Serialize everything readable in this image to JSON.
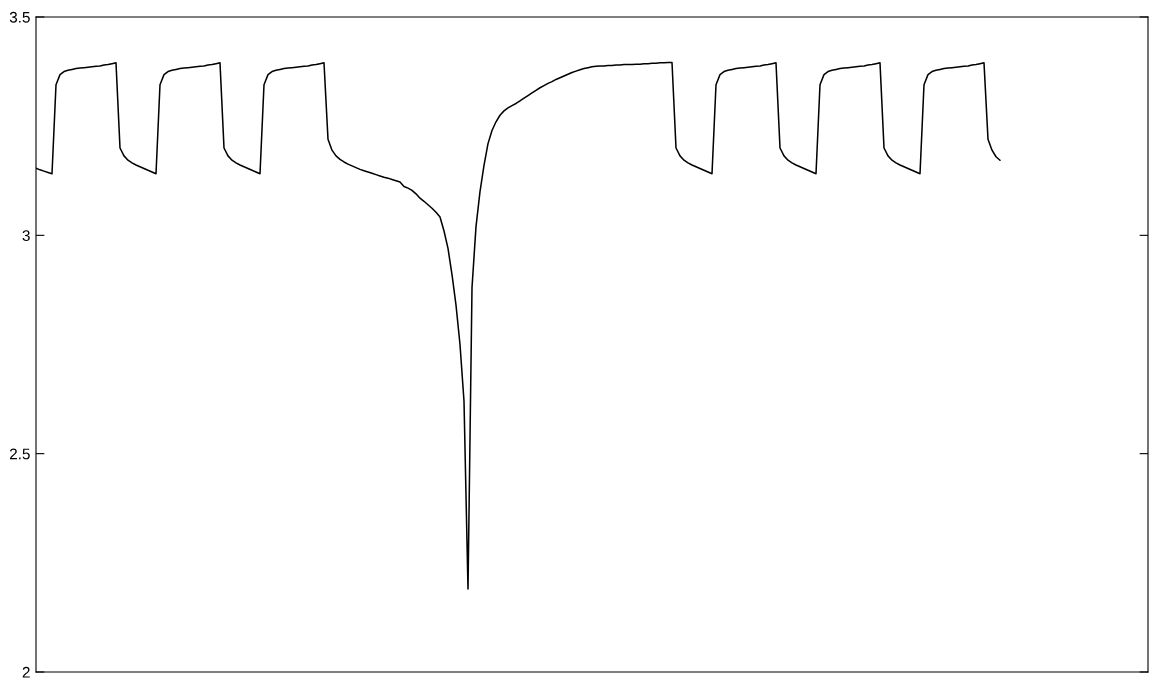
{
  "chart_data": {
    "type": "line",
    "color": "#000000",
    "ylim": [
      2,
      3.5
    ],
    "yticks": [
      2,
      2.5,
      3,
      3.5
    ],
    "grid": false,
    "tick_labels": "y",
    "categories": [
      null,
      null,
      null,
      null,
      null,
      null,
      null,
      null,
      null,
      null,
      null,
      null,
      null,
      null,
      null,
      null,
      null,
      null,
      null,
      null,
      null,
      null,
      null,
      null,
      null,
      null,
      null,
      null,
      null,
      null,
      null,
      null,
      null,
      null,
      null,
      null,
      null,
      null,
      null,
      null,
      null,
      null,
      null,
      null,
      null,
      null,
      null,
      null,
      null,
      null,
      null,
      null,
      null,
      null,
      null,
      null,
      null,
      null,
      null,
      null,
      null,
      null,
      null,
      null,
      null,
      null,
      null,
      null,
      null,
      null,
      null,
      null,
      null,
      null,
      null,
      null,
      null,
      null,
      null,
      null,
      null,
      null,
      null,
      null,
      null,
      null,
      null,
      null,
      null,
      null,
      null,
      null,
      null,
      null,
      null,
      null,
      null,
      null,
      null,
      null,
      null,
      null,
      null,
      null,
      null,
      null,
      null,
      null,
      null,
      null,
      null,
      null,
      null,
      null,
      null,
      null,
      null,
      null,
      null,
      null,
      null,
      null,
      null,
      null,
      null,
      null,
      null,
      null,
      null,
      null,
      null,
      null,
      null,
      null,
      null,
      null,
      null,
      null,
      null,
      null,
      null,
      null,
      null,
      null,
      null,
      null,
      null,
      null,
      null,
      null,
      null,
      null,
      null,
      null,
      null,
      null,
      null,
      null,
      null,
      null,
      null,
      null,
      null,
      null,
      null,
      null,
      null,
      null,
      null,
      null,
      null,
      null,
      null,
      null,
      null,
      null,
      null,
      null,
      null,
      null,
      null,
      null,
      null,
      null,
      null,
      null,
      null,
      null,
      null,
      null,
      null,
      null,
      null,
      null,
      null,
      null,
      null,
      null,
      null,
      null,
      null,
      null,
      null,
      null,
      null,
      null,
      null,
      null,
      null,
      null,
      null,
      null,
      null,
      null,
      null,
      null,
      null,
      null,
      null,
      null,
      null,
      null,
      null,
      null,
      null,
      null,
      null,
      null,
      null,
      null,
      null,
      null,
      null,
      null,
      null,
      null,
      null,
      null,
      null,
      null,
      null,
      null
    ],
    "values": [
      3.154,
      3.15,
      3.147,
      3.144,
      3.141,
      3.345,
      3.368,
      3.375,
      3.378,
      3.38,
      3.382,
      3.383,
      3.384,
      3.385,
      3.386,
      3.387,
      3.388,
      3.39,
      3.391,
      3.393,
      3.395,
      3.2,
      3.182,
      3.172,
      3.166,
      3.161,
      3.157,
      3.153,
      3.149,
      3.145,
      3.141,
      3.345,
      3.368,
      3.375,
      3.378,
      3.38,
      3.382,
      3.383,
      3.384,
      3.385,
      3.386,
      3.387,
      3.388,
      3.39,
      3.391,
      3.393,
      3.395,
      3.2,
      3.182,
      3.172,
      3.166,
      3.161,
      3.157,
      3.153,
      3.149,
      3.145,
      3.141,
      3.345,
      3.368,
      3.375,
      3.378,
      3.38,
      3.382,
      3.383,
      3.384,
      3.385,
      3.386,
      3.387,
      3.388,
      3.39,
      3.391,
      3.393,
      3.395,
      3.22,
      3.195,
      3.182,
      3.174,
      3.168,
      3.163,
      3.159,
      3.155,
      3.151,
      3.148,
      3.145,
      3.142,
      3.139,
      3.136,
      3.133,
      3.131,
      3.128,
      3.125,
      3.122,
      3.112,
      3.108,
      3.103,
      3.095,
      3.085,
      3.078,
      3.07,
      3.062,
      3.053,
      3.042,
      3.01,
      2.97,
      2.91,
      2.84,
      2.75,
      2.62,
      2.19,
      2.88,
      3.02,
      3.1,
      3.16,
      3.21,
      3.24,
      3.26,
      3.275,
      3.285,
      3.292,
      3.297,
      3.302,
      3.308,
      3.314,
      3.32,
      3.326,
      3.332,
      3.338,
      3.343,
      3.348,
      3.352,
      3.357,
      3.361,
      3.365,
      3.369,
      3.373,
      3.376,
      3.379,
      3.382,
      3.384,
      3.386,
      3.387,
      3.388,
      3.388,
      3.389,
      3.389,
      3.39,
      3.39,
      3.391,
      3.391,
      3.391,
      3.392,
      3.392,
      3.393,
      3.393,
      3.394,
      3.394,
      3.395,
      3.395,
      3.396,
      3.396,
      3.2,
      3.182,
      3.172,
      3.166,
      3.161,
      3.157,
      3.153,
      3.149,
      3.145,
      3.141,
      3.345,
      3.368,
      3.375,
      3.378,
      3.38,
      3.382,
      3.383,
      3.384,
      3.385,
      3.386,
      3.387,
      3.388,
      3.39,
      3.391,
      3.393,
      3.395,
      3.2,
      3.182,
      3.172,
      3.166,
      3.161,
      3.157,
      3.153,
      3.149,
      3.145,
      3.141,
      3.345,
      3.368,
      3.375,
      3.378,
      3.38,
      3.382,
      3.383,
      3.384,
      3.385,
      3.386,
      3.387,
      3.388,
      3.39,
      3.391,
      3.393,
      3.395,
      3.2,
      3.182,
      3.172,
      3.166,
      3.161,
      3.157,
      3.153,
      3.149,
      3.145,
      3.141,
      3.345,
      3.368,
      3.375,
      3.378,
      3.38,
      3.382,
      3.383,
      3.384,
      3.385,
      3.386,
      3.387,
      3.388,
      3.39,
      3.391,
      3.393,
      3.395,
      3.22,
      3.195,
      3.18,
      3.172
    ]
  }
}
